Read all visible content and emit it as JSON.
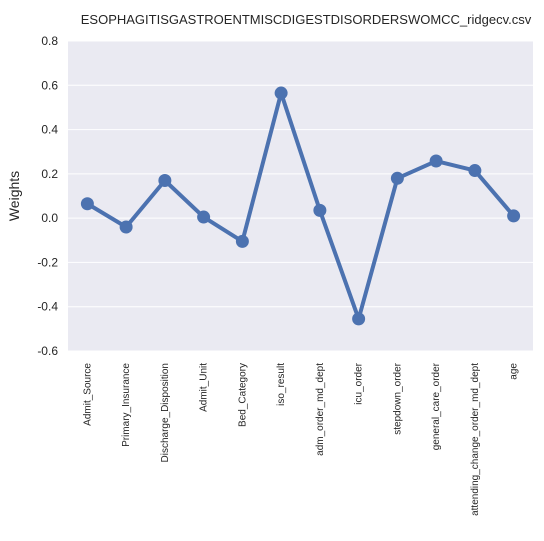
{
  "chart_data": {
    "type": "line",
    "title": "ESOPHAGITISGASTROENTMISCDIGESTDISORDERSWOMCC_ridgecv.csv",
    "xlabel": "",
    "ylabel": "Weights",
    "categories": [
      "Admit_Source",
      "Primary_Insurance",
      "Discharge_Disposition",
      "Admit_Unit",
      "Bed_Category",
      "iso_result",
      "adm_order_md_dept",
      "icu_order",
      "stepdown_order",
      "general_care_order",
      "attending_change_order_md_dept",
      "age"
    ],
    "values": [
      0.065,
      -0.04,
      0.17,
      0.005,
      -0.105,
      0.565,
      0.035,
      -0.455,
      0.18,
      0.258,
      0.215,
      0.01
    ],
    "ylim": [
      -0.6,
      0.8
    ],
    "yticks": [
      "-0.6",
      "-0.4",
      "-0.2",
      "0.0",
      "0.2",
      "0.4",
      "0.6",
      "0.8"
    ],
    "grid": true,
    "colors": {
      "background": "#eaeaf2",
      "grid": "#ffffff",
      "line": "#4c72b0"
    }
  }
}
